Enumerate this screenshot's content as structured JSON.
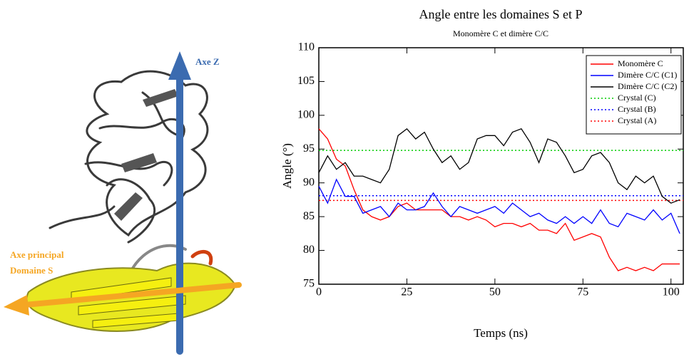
{
  "illustration": {
    "axis_z_label": "Axe Z",
    "axis_main_label": [
      "Axe principal",
      "Domaine S"
    ]
  },
  "chart_data": {
    "type": "line",
    "title": "Angle entre les domaines S et P",
    "subtitle": "Monomère C et dimère C/C",
    "xlabel": "Temps (ns)",
    "ylabel": "Angle (°)",
    "xlim": [
      0,
      103.5
    ],
    "ylim": [
      75,
      110
    ],
    "xticks": [
      0,
      25,
      50,
      75,
      100
    ],
    "yticks": [
      75,
      80,
      85,
      90,
      95,
      100,
      105,
      110
    ],
    "legend": "upper right",
    "x": [
      0,
      2.5,
      5,
      7.5,
      10,
      12.5,
      15,
      17.5,
      20,
      22.5,
      25,
      27.5,
      30,
      32.5,
      35,
      37.5,
      40,
      42.5,
      45,
      47.5,
      50,
      52.5,
      55,
      57.5,
      60,
      62.5,
      65,
      67.5,
      70,
      72.5,
      75,
      77.5,
      80,
      82.5,
      85,
      87.5,
      90,
      92.5,
      95,
      97.5,
      100,
      102.5
    ],
    "series": [
      {
        "name": "Monomère C",
        "color": "#ff0000",
        "values": [
          98,
          96.5,
          93.5,
          92.5,
          89,
          86,
          85,
          84.5,
          85,
          86.5,
          87,
          86,
          86,
          86,
          86,
          85,
          85,
          84.5,
          85,
          84.5,
          83.5,
          84,
          84,
          83.5,
          84,
          83,
          83,
          82.5,
          84,
          81.5,
          82,
          82.5,
          82,
          79,
          77,
          77.5,
          77,
          77.5,
          77,
          78,
          78,
          78
        ]
      },
      {
        "name": "Dimère C/C (C1)",
        "color": "#0000ff",
        "values": [
          89.5,
          87,
          90.5,
          88,
          88,
          85.5,
          86,
          86.5,
          85,
          87,
          86,
          86,
          86.5,
          88.5,
          86.5,
          85,
          86.5,
          86,
          85.5,
          86,
          86.5,
          85.5,
          87,
          86,
          85,
          85.5,
          84.5,
          84,
          85,
          84,
          85,
          84,
          86,
          84,
          83.5,
          85.5,
          85,
          84.5,
          86,
          84.5,
          85.5,
          82.5
        ]
      },
      {
        "name": "Dimère C/C (C2)",
        "color": "#000000",
        "values": [
          91.5,
          94,
          92,
          93,
          91,
          91,
          90.5,
          90,
          92,
          97,
          98,
          96.5,
          97.5,
          95,
          93,
          94,
          92,
          93,
          96.5,
          97,
          97,
          95.5,
          97.5,
          98,
          96,
          93,
          96.5,
          96,
          94,
          91.5,
          92,
          94,
          94.5,
          93,
          90,
          89,
          91,
          90,
          91,
          88,
          87,
          87.5
        ]
      }
    ],
    "reference_lines": [
      {
        "name": "Crystal (C)",
        "color": "#00cc00",
        "value": 94.8
      },
      {
        "name": "Crystal (B)",
        "color": "#0000ff",
        "value": 88.1
      },
      {
        "name": "Crystal (A)",
        "color": "#ff0000",
        "value": 87.4
      }
    ]
  }
}
